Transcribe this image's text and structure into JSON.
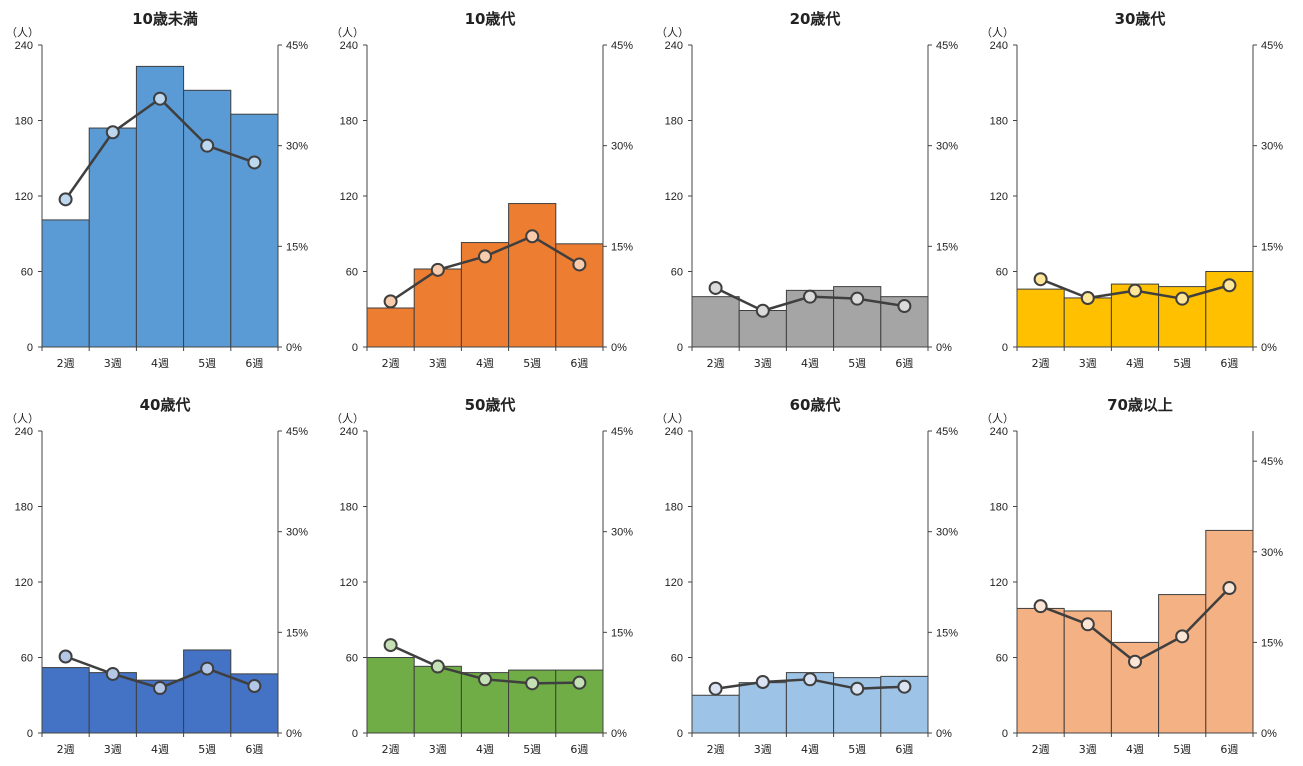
{
  "unit_label": "（人）",
  "colors": {
    "axis": "#444444",
    "line": "#3f3f3f",
    "bar_stroke": "#3f3f3f"
  },
  "chart_data": [
    {
      "type": "bar",
      "title": "10歳未満",
      "categories": [
        "2週",
        "3週",
        "4週",
        "5週",
        "6週"
      ],
      "series": [
        {
          "kind": "bar",
          "axis": "left",
          "values": [
            101,
            174,
            223,
            204,
            185
          ],
          "color": "#5b9bd5"
        },
        {
          "kind": "line",
          "axis": "right",
          "values": [
            22.0,
            32.0,
            37.0,
            30.0,
            27.5
          ],
          "marker_color": "#bdd7ee"
        }
      ],
      "ylim": [
        0,
        240
      ],
      "yticks": [
        "0",
        "60",
        "120",
        "180",
        "240"
      ],
      "y2lim": [
        0,
        45
      ],
      "y2ticks": [
        "0%",
        "15%",
        "30%",
        "45%"
      ]
    },
    {
      "type": "bar",
      "title": "10歳代",
      "categories": [
        "2週",
        "3週",
        "4週",
        "5週",
        "6週"
      ],
      "series": [
        {
          "kind": "bar",
          "axis": "left",
          "values": [
            31,
            62,
            83,
            114,
            82
          ],
          "color": "#ed7d31"
        },
        {
          "kind": "line",
          "axis": "right",
          "values": [
            6.8,
            11.5,
            13.5,
            16.5,
            12.3
          ],
          "marker_color": "#f8cbad"
        }
      ],
      "ylim": [
        0,
        240
      ],
      "yticks": [
        "0",
        "60",
        "120",
        "180",
        "240"
      ],
      "y2lim": [
        0,
        45
      ],
      "y2ticks": [
        "0%",
        "15%",
        "30%",
        "45%"
      ]
    },
    {
      "type": "bar",
      "title": "20歳代",
      "categories": [
        "2週",
        "3週",
        "4週",
        "5週",
        "6週"
      ],
      "series": [
        {
          "kind": "bar",
          "axis": "left",
          "values": [
            40,
            29,
            45,
            48,
            40
          ],
          "color": "#a5a5a5"
        },
        {
          "kind": "line",
          "axis": "right",
          "values": [
            8.8,
            5.4,
            7.5,
            7.2,
            6.1
          ],
          "marker_color": "#dbdbdb"
        }
      ],
      "ylim": [
        0,
        240
      ],
      "yticks": [
        "0",
        "60",
        "120",
        "180",
        "240"
      ],
      "y2lim": [
        0,
        45
      ],
      "y2ticks": [
        "0%",
        "15%",
        "30%",
        "45%"
      ]
    },
    {
      "type": "bar",
      "title": "30歳代",
      "categories": [
        "2週",
        "3週",
        "4週",
        "5週",
        "6週"
      ],
      "series": [
        {
          "kind": "bar",
          "axis": "left",
          "values": [
            46,
            39,
            50,
            48,
            60
          ],
          "color": "#ffc000"
        },
        {
          "kind": "line",
          "axis": "right",
          "values": [
            10.1,
            7.3,
            8.4,
            7.2,
            9.2
          ],
          "marker_color": "#ffe699"
        }
      ],
      "ylim": [
        0,
        240
      ],
      "yticks": [
        "0",
        "60",
        "120",
        "180",
        "240"
      ],
      "y2lim": [
        0,
        45
      ],
      "y2ticks": [
        "0%",
        "15%",
        "30%",
        "45%"
      ]
    },
    {
      "type": "bar",
      "title": "40歳代",
      "categories": [
        "2週",
        "3週",
        "4週",
        "5週",
        "6週"
      ],
      "series": [
        {
          "kind": "bar",
          "axis": "left",
          "values": [
            52,
            48,
            42,
            66,
            47
          ],
          "color": "#4472c4"
        },
        {
          "kind": "line",
          "axis": "right",
          "values": [
            11.4,
            8.8,
            6.7,
            9.6,
            7.0
          ],
          "marker_color": "#b4c7e7"
        }
      ],
      "ylim": [
        0,
        240
      ],
      "yticks": [
        "0",
        "60",
        "120",
        "180",
        "240"
      ],
      "y2lim": [
        0,
        45
      ],
      "y2ticks": [
        "0%",
        "15%",
        "30%",
        "45%"
      ]
    },
    {
      "type": "bar",
      "title": "50歳代",
      "categories": [
        "2週",
        "3週",
        "4週",
        "5週",
        "6週"
      ],
      "series": [
        {
          "kind": "bar",
          "axis": "left",
          "values": [
            60,
            53,
            48,
            50,
            50
          ],
          "color": "#70ad47"
        },
        {
          "kind": "line",
          "axis": "right",
          "values": [
            13.1,
            9.9,
            8.0,
            7.4,
            7.5
          ],
          "marker_color": "#c5e0b4"
        }
      ],
      "ylim": [
        0,
        240
      ],
      "yticks": [
        "0",
        "60",
        "120",
        "180",
        "240"
      ],
      "y2lim": [
        0,
        45
      ],
      "y2ticks": [
        "0%",
        "15%",
        "30%",
        "45%"
      ]
    },
    {
      "type": "bar",
      "title": "60歳代",
      "categories": [
        "2週",
        "3週",
        "4週",
        "5週",
        "6週"
      ],
      "series": [
        {
          "kind": "bar",
          "axis": "left",
          "values": [
            30,
            40,
            48,
            44,
            45
          ],
          "color": "#9dc3e6"
        },
        {
          "kind": "line",
          "axis": "right",
          "values": [
            6.6,
            7.6,
            8.0,
            6.6,
            6.9
          ],
          "marker_color": "#dae3f3"
        }
      ],
      "ylim": [
        0,
        240
      ],
      "yticks": [
        "0",
        "60",
        "120",
        "180",
        "240"
      ],
      "y2lim": [
        0,
        45
      ],
      "y2ticks": [
        "0%",
        "15%",
        "30%",
        "45%"
      ]
    },
    {
      "type": "bar",
      "title": "70歳以上",
      "categories": [
        "2週",
        "3週",
        "4週",
        "5週",
        "6週"
      ],
      "series": [
        {
          "kind": "bar",
          "axis": "left",
          "values": [
            99,
            97,
            72,
            110,
            161
          ],
          "color": "#f4b183"
        },
        {
          "kind": "line",
          "axis": "right",
          "values": [
            21.0,
            18.0,
            11.8,
            16.0,
            24.0
          ],
          "marker_color": "#fbe5d6"
        }
      ],
      "ylim": [
        0,
        240
      ],
      "yticks": [
        "0",
        "60",
        "120",
        "180",
        "240"
      ],
      "y2lim": [
        0,
        50
      ],
      "y2ticks": [
        "0%",
        "15%",
        "30%",
        "45%"
      ]
    }
  ]
}
